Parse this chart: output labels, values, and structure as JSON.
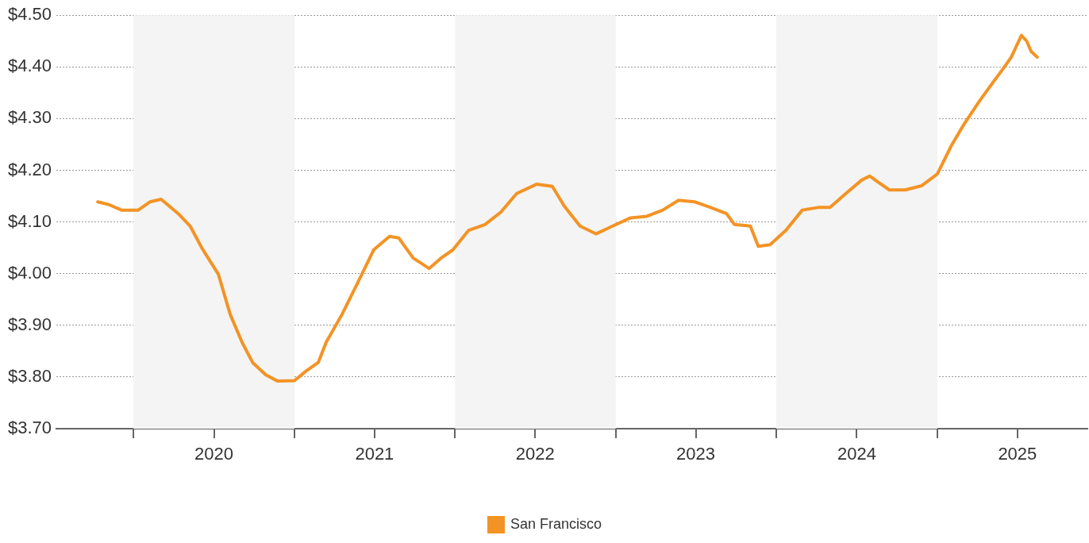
{
  "chart_data": {
    "type": "line",
    "x": [
      "2019-10-12",
      "2019-11-05",
      "2019-12-05",
      "2020-01-12",
      "2020-02-08",
      "2020-03-04",
      "2020-04-12",
      "2020-05-09",
      "2020-06-05",
      "2020-07-12",
      "2020-08-08",
      "2020-09-04",
      "2020-09-28",
      "2020-10-28",
      "2020-11-24",
      "2021-01-01",
      "2021-01-28",
      "2021-02-24",
      "2021-03-14",
      "2021-04-19",
      "2021-05-25",
      "2021-06-30",
      "2021-08-05",
      "2021-08-26",
      "2021-09-28",
      "2021-11-03",
      "2021-11-30",
      "2021-12-27",
      "2022-02-01",
      "2022-03-10",
      "2022-04-15",
      "2022-05-21",
      "2022-07-05",
      "2022-08-10",
      "2022-09-06",
      "2022-10-12",
      "2022-11-17",
      "2022-12-25",
      "2023-02-04",
      "2023-03-13",
      "2023-04-18",
      "2023-05-24",
      "2023-06-29",
      "2023-08-05",
      "2023-09-10",
      "2023-09-28",
      "2023-11-03",
      "2023-11-21",
      "2023-12-18",
      "2024-01-23",
      "2024-02-29",
      "2024-04-05",
      "2024-05-02",
      "2024-06-07",
      "2024-07-13",
      "2024-07-31",
      "2024-08-18",
      "2024-09-14",
      "2024-10-20",
      "2024-11-26",
      "2025-01-01",
      "2025-02-02",
      "2025-03-01",
      "2025-04-06",
      "2025-05-03",
      "2025-05-30",
      "2025-06-18",
      "2025-07-11",
      "2025-07-23",
      "2025-08-02",
      "2025-08-16"
    ],
    "series": [
      {
        "name": "San Francisco",
        "color": "#f39325",
        "values": [
          4.139,
          4.134,
          4.123,
          4.123,
          4.139,
          4.144,
          4.116,
          4.092,
          4.049,
          3.999,
          3.921,
          3.867,
          3.828,
          3.804,
          3.792,
          3.793,
          3.812,
          3.828,
          3.867,
          3.921,
          3.983,
          4.046,
          4.072,
          4.069,
          4.03,
          4.01,
          4.03,
          4.046,
          4.084,
          4.095,
          4.119,
          4.155,
          4.173,
          4.169,
          4.131,
          4.092,
          4.077,
          4.092,
          4.108,
          4.111,
          4.123,
          4.142,
          4.139,
          4.128,
          4.116,
          4.095,
          4.092,
          4.053,
          4.056,
          4.084,
          4.123,
          4.128,
          4.128,
          4.155,
          4.181,
          4.189,
          4.178,
          4.162,
          4.162,
          4.17,
          4.193,
          4.248,
          4.287,
          4.333,
          4.365,
          4.396,
          4.419,
          4.461,
          4.45,
          4.43,
          4.419
        ]
      }
    ],
    "xlim": [
      "2019-07-10",
      "2025-12-08"
    ],
    "xticks": [
      {
        "value": "2020-01-01",
        "label": null
      },
      {
        "value": "2020-07-02",
        "label": "2020"
      },
      {
        "value": "2021-01-01",
        "label": null
      },
      {
        "value": "2021-07-02",
        "label": "2021"
      },
      {
        "value": "2022-01-01",
        "label": null
      },
      {
        "value": "2022-07-02",
        "label": "2022"
      },
      {
        "value": "2023-01-01",
        "label": null
      },
      {
        "value": "2023-07-02",
        "label": "2023"
      },
      {
        "value": "2024-01-01",
        "label": null
      },
      {
        "value": "2024-07-02",
        "label": "2024"
      },
      {
        "value": "2025-01-01",
        "label": null
      },
      {
        "value": "2025-07-02",
        "label": "2025"
      }
    ],
    "ylim": [
      3.7,
      4.5
    ],
    "yticks": [
      {
        "value": 3.7,
        "label": "$3.70"
      },
      {
        "value": 3.8,
        "label": "$3.80"
      },
      {
        "value": 3.9,
        "label": "$3.90"
      },
      {
        "value": 4.0,
        "label": "$4.00"
      },
      {
        "value": 4.1,
        "label": "$4.10"
      },
      {
        "value": 4.2,
        "label": "$4.20"
      },
      {
        "value": 4.3,
        "label": "$4.30"
      },
      {
        "value": 4.4,
        "label": "$4.40"
      },
      {
        "value": 4.5,
        "label": "$4.50"
      }
    ],
    "bands": [
      {
        "axis": "x",
        "from": "2020-01-01",
        "to": "2021-01-01",
        "color": "#f4f4f4"
      },
      {
        "axis": "x",
        "from": "2022-01-01",
        "to": "2023-01-01",
        "color": "#f4f4f4"
      },
      {
        "axis": "x",
        "from": "2024-01-01",
        "to": "2025-01-01",
        "color": "#f4f4f4"
      }
    ],
    "grid": "y",
    "legend": "bottom",
    "marker": "none",
    "line_style": "solid"
  }
}
